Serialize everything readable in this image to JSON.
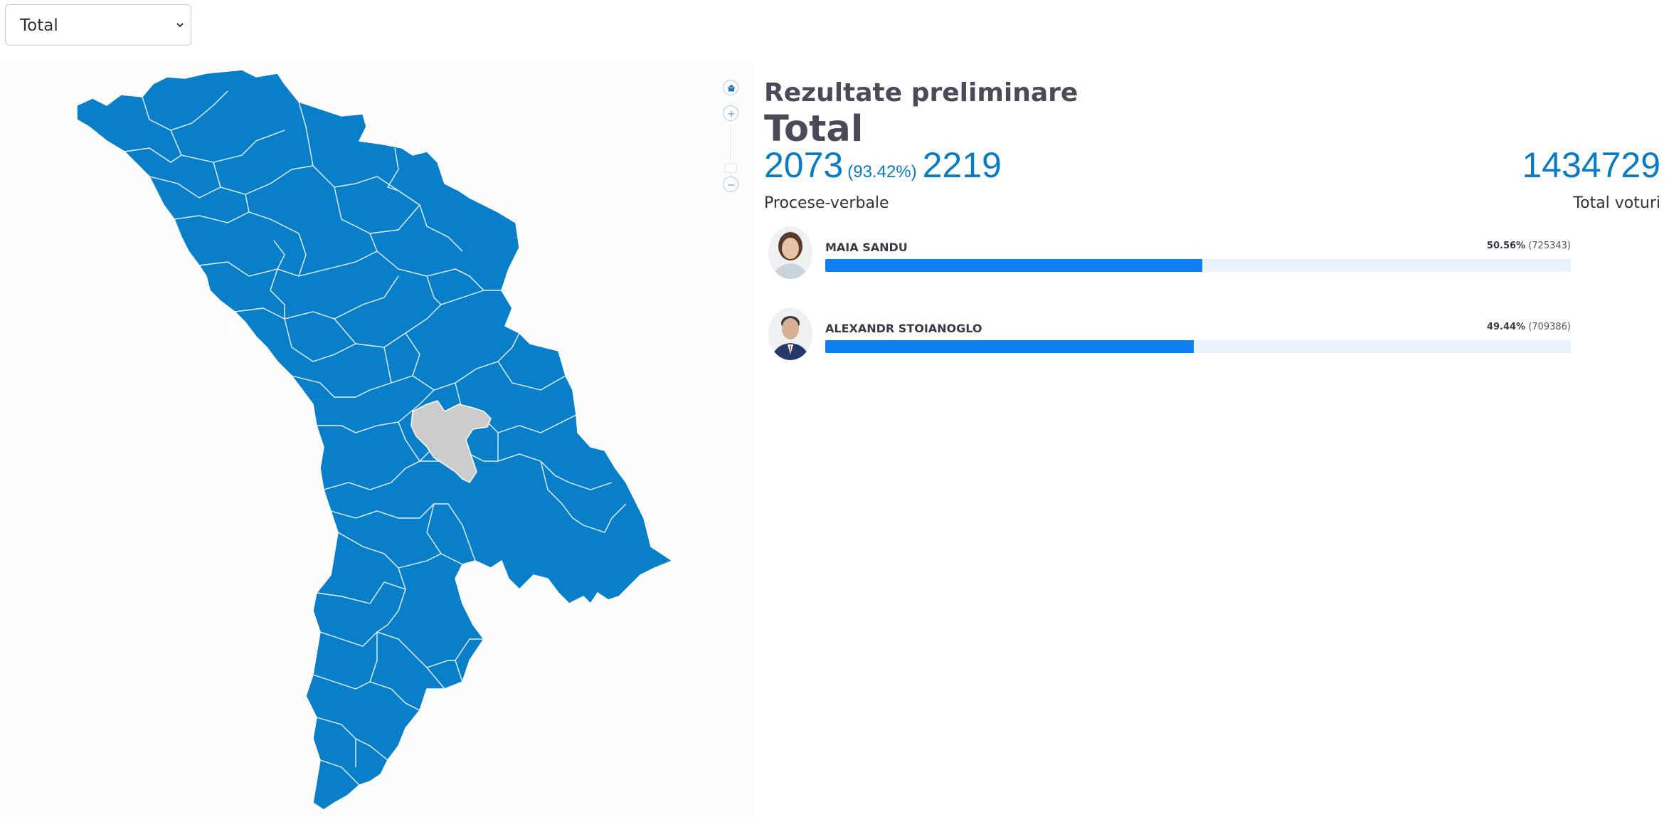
{
  "filter": {
    "selected": "Total"
  },
  "map": {
    "region_color": "#0a7fc9",
    "highlight_color": "#cccccc",
    "controls": [
      "home-icon",
      "zoom-in-icon",
      "zoom-out-icon"
    ]
  },
  "results": {
    "heading": "Rezultate preliminare",
    "subheading": "Total",
    "processed": "2073",
    "processed_pct": "(93.42%)",
    "total_protocols": "2219",
    "total_votes": "1434729",
    "protocols_label": "Procese-verbale",
    "votes_label": "Total voturi",
    "accent_color": "#0a7cc4",
    "candidates": [
      {
        "name": "MAIA SANDU",
        "pct": "50.56%",
        "votes": "(725343)",
        "share": 0.5056
      },
      {
        "name": "ALEXANDR STOIANOGLO",
        "pct": "49.44%",
        "votes": "(709386)",
        "share": 0.4944
      }
    ]
  }
}
